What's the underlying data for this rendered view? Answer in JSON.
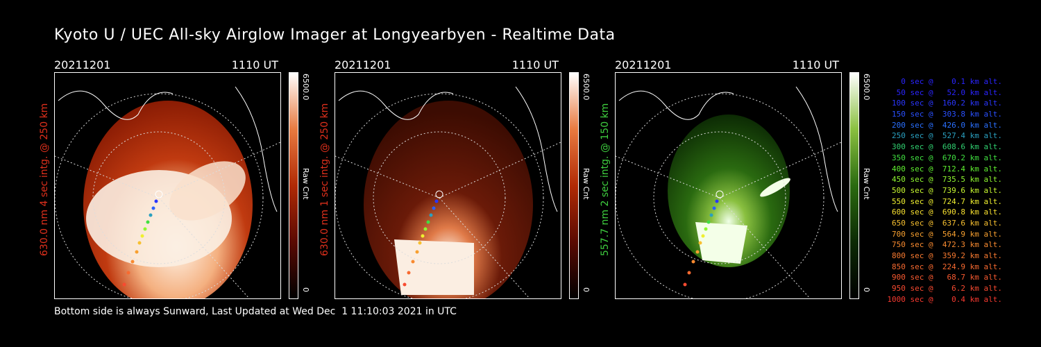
{
  "title": "Kyoto U / UEC All-sky Airglow Imager at Longyearbyen - Realtime Data",
  "footer": "Bottom side is always Sunward, Last Updated at Wed Dec  1 11:10:03 2021 in UTC",
  "panels": [
    {
      "date": "20211201",
      "time": "1110 UT",
      "side_label": "630.0 nm 4 sec intg. @ 250 km",
      "label_color": "#e0301c",
      "cbar_top": "6500.0",
      "cbar_unit": "Raw Cnt",
      "cbar_bottom": "0",
      "theme": "red"
    },
    {
      "date": "20211201",
      "time": "1110 UT",
      "side_label": "630.0 nm 1 sec intg. @ 250 km",
      "label_color": "#e0301c",
      "cbar_top": "6500.0",
      "cbar_unit": "Raw Cnt",
      "cbar_bottom": "0",
      "theme": "red-dark"
    },
    {
      "date": "20211201",
      "time": "1110 UT",
      "side_label": "557.7 nm 2 sec intg. @ 150 km",
      "label_color": "#3fcf3f",
      "cbar_top": "6500.0",
      "cbar_unit": "Raw Cnt",
      "cbar_bottom": "0",
      "theme": "green"
    }
  ],
  "legend": [
    {
      "text": "0 sec @    0.1 km alt.",
      "color": "#2a24ff"
    },
    {
      "text": "50 sec @   52.0 km alt.",
      "color": "#2a24ff"
    },
    {
      "text": "100 sec @  160.2 km alt.",
      "color": "#2a36ff"
    },
    {
      "text": "150 sec @  303.8 km alt.",
      "color": "#2a50ff"
    },
    {
      "text": "200 sec @  426.0 km alt.",
      "color": "#2a70ff"
    },
    {
      "text": "250 sec @  527.4 km alt.",
      "color": "#2aa0c0"
    },
    {
      "text": "300 sec @  608.6 km alt.",
      "color": "#30d070"
    },
    {
      "text": "350 sec @  670.2 km alt.",
      "color": "#40e040"
    },
    {
      "text": "400 sec @  712.4 km alt.",
      "color": "#60f030"
    },
    {
      "text": "450 sec @  735.5 km alt.",
      "color": "#90f830"
    },
    {
      "text": "500 sec @  739.6 km alt.",
      "color": "#c8f830"
    },
    {
      "text": "550 sec @  724.7 km alt.",
      "color": "#f0f030"
    },
    {
      "text": "600 sec @  690.8 km alt.",
      "color": "#f8e030"
    },
    {
      "text": "650 sec @  637.6 km alt.",
      "color": "#f8c030"
    },
    {
      "text": "700 sec @  564.9 km alt.",
      "color": "#f8a030"
    },
    {
      "text": "750 sec @  472.3 km alt.",
      "color": "#f88a30"
    },
    {
      "text": "800 sec @  359.2 km alt.",
      "color": "#f87a30"
    },
    {
      "text": "850 sec @  224.9 km alt.",
      "color": "#f86a30"
    },
    {
      "text": "900 sec @   68.7 km alt.",
      "color": "#f85a30"
    },
    {
      "text": "950 sec @    6.2 km alt.",
      "color": "#f84a30"
    },
    {
      "text": "1000 sec @    0.4 km alt.",
      "color": "#f83a30"
    }
  ]
}
